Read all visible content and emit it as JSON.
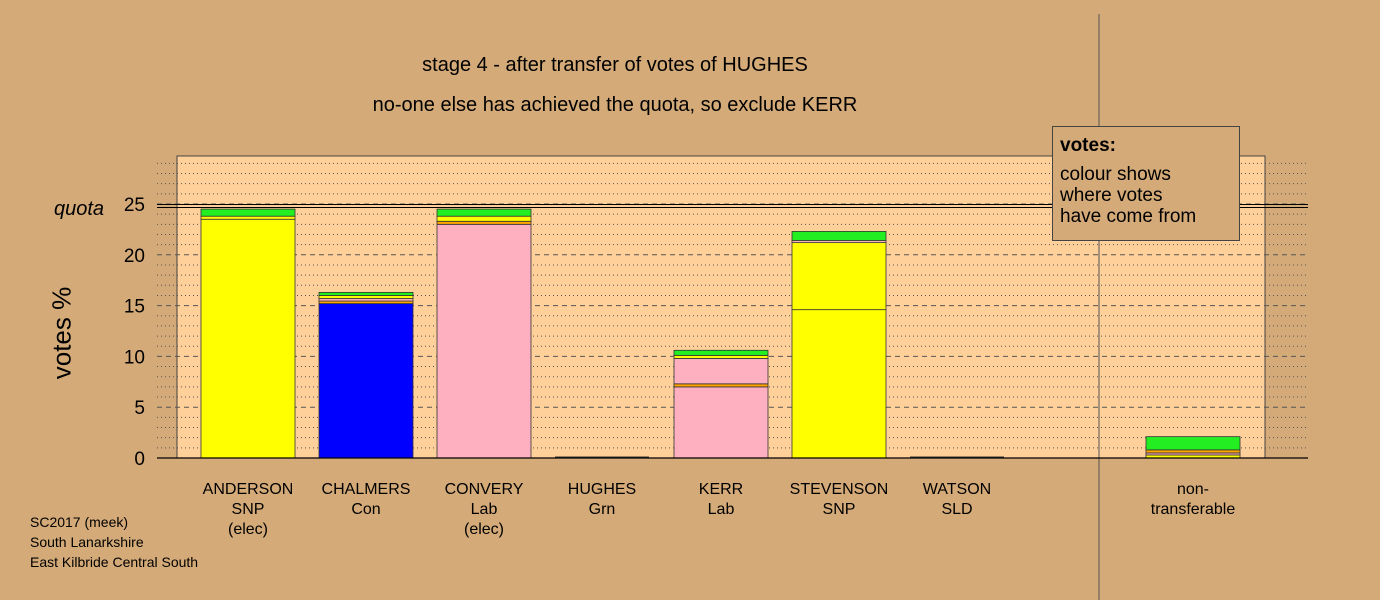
{
  "chart_data": {
    "type": "bar",
    "stacked": true,
    "title": "stage 4 - after transfer of votes of HUGHES",
    "subtitle": "no-one else has achieved the quota, so exclude KERR",
    "ylabel": "votes %",
    "ylim": [
      0,
      25
    ],
    "yticks": [
      0,
      5,
      10,
      15,
      20,
      25
    ],
    "quota": 24.8,
    "quota_label": "quota",
    "grid": true,
    "categories": [
      {
        "name": "ANDERSON",
        "party": "SNP",
        "status": "(elec)"
      },
      {
        "name": "CHALMERS",
        "party": "Con",
        "status": ""
      },
      {
        "name": "CONVERY",
        "party": "Lab",
        "status": "(elec)"
      },
      {
        "name": "HUGHES",
        "party": "Grn",
        "status": ""
      },
      {
        "name": "KERR",
        "party": "Lab",
        "status": ""
      },
      {
        "name": "STEVENSON",
        "party": "SNP",
        "status": ""
      },
      {
        "name": "WATSON",
        "party": "SLD",
        "status": ""
      },
      {
        "name": "non-\ntransferable",
        "party": "",
        "status": ""
      }
    ],
    "bars": [
      [
        {
          "value": 23.5,
          "color": "#ffff00"
        },
        {
          "value": 0.3,
          "color": "#ffff00"
        },
        {
          "value": 0.7,
          "color": "#22ee22"
        }
      ],
      [
        {
          "value": 15.2,
          "color": "#0000ff"
        },
        {
          "value": 0.25,
          "color": "#ffa500"
        },
        {
          "value": 0.25,
          "color": "#ffb0c0"
        },
        {
          "value": 0.3,
          "color": "#ffff00"
        },
        {
          "value": 0.3,
          "color": "#22ee22"
        }
      ],
      [
        {
          "value": 23.0,
          "color": "#ffb0c0"
        },
        {
          "value": 0.3,
          "color": "#ffa500"
        },
        {
          "value": 0.5,
          "color": "#ffff00"
        },
        {
          "value": 0.7,
          "color": "#22ee22"
        }
      ],
      [],
      [
        {
          "value": 7.0,
          "color": "#ffb0c0"
        },
        {
          "value": 0.3,
          "color": "#ffa500"
        },
        {
          "value": 2.5,
          "color": "#ffb0c0"
        },
        {
          "value": 0.3,
          "color": "#ffff00"
        },
        {
          "value": 0.5,
          "color": "#22ee22"
        }
      ],
      [
        {
          "value": 14.6,
          "color": "#ffff00"
        },
        {
          "value": 6.6,
          "color": "#ffff00"
        },
        {
          "value": 0.2,
          "color": "#ffb0c0"
        },
        {
          "value": 0.9,
          "color": "#22ee22"
        }
      ],
      [],
      [
        {
          "value": 0.3,
          "color": "#ffff00"
        },
        {
          "value": 0.2,
          "color": "#ffb0c0"
        },
        {
          "value": 0.3,
          "color": "#ffa500"
        },
        {
          "value": 1.3,
          "color": "#22ee22"
        }
      ]
    ]
  },
  "legend": {
    "title": "votes:",
    "lines": [
      "colour shows",
      "where votes",
      "have come from"
    ]
  },
  "source": [
    "SC2017 (meek)",
    "South Lanarkshire",
    "East Kilbride Central South"
  ],
  "colors": {
    "background": "#d4aa78",
    "plot_bg": "#ffd09a",
    "grid": "#555555"
  }
}
